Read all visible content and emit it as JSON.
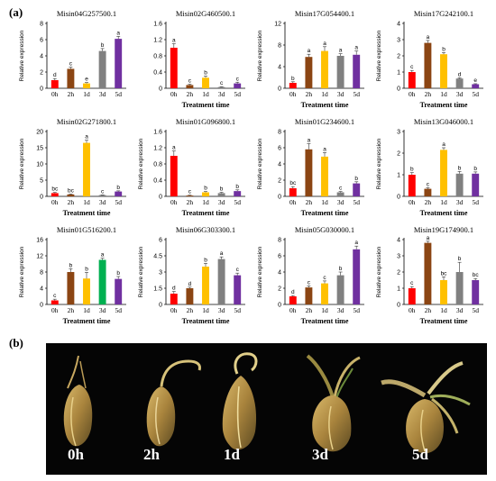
{
  "panel_labels": {
    "a": "(a)",
    "b": "(b)"
  },
  "photo_labels": [
    "0h",
    "2h",
    "1d",
    "3d",
    "5d"
  ],
  "colors": [
    "#ff0000",
    "#8b4513",
    "#ffc000",
    "#808080",
    "#7030a0"
  ],
  "highlight_color": "#00b050",
  "chart_data": [
    {
      "type": "bar",
      "title": "Misin04G257500.1",
      "xlabel": "",
      "ylabel": "Relative expression",
      "ylim": [
        0,
        8
      ],
      "yticks": [
        0,
        2,
        4,
        6,
        8
      ],
      "categories": [
        "0h",
        "2h",
        "1d",
        "3d",
        "5d"
      ],
      "values": [
        1.0,
        2.4,
        0.6,
        4.6,
        6.1
      ],
      "errors": [
        0.2,
        0.2,
        0.1,
        0.3,
        0.3
      ],
      "letters": [
        "d",
        "c",
        "e",
        "b",
        "a"
      ]
    },
    {
      "type": "bar",
      "title": "Misin02G460500.1",
      "xlabel": "Treatment time",
      "ylabel": "",
      "ylim": [
        0,
        1.6
      ],
      "yticks": [
        0,
        0.4,
        0.8,
        1.2,
        1.6
      ],
      "categories": [
        "0h",
        "2h",
        "1d",
        "3d",
        "5d"
      ],
      "values": [
        1.0,
        0.08,
        0.26,
        0.03,
        0.12
      ],
      "errors": [
        0.1,
        0.02,
        0.04,
        0.01,
        0.03
      ],
      "letters": [
        "a",
        "c",
        "b",
        "c",
        "c"
      ]
    },
    {
      "type": "bar",
      "title": "Misin17G054400.1",
      "xlabel": "Treatment time",
      "ylabel": "Relative expression",
      "ylim": [
        0,
        12
      ],
      "yticks": [
        0,
        4,
        8,
        12
      ],
      "categories": [
        "0h",
        "2h",
        "1d",
        "3d",
        "5d"
      ],
      "values": [
        1.0,
        5.8,
        6.9,
        6.0,
        6.2
      ],
      "errors": [
        0.2,
        0.5,
        0.8,
        0.4,
        0.7
      ],
      "letters": [
        "b",
        "a",
        "a",
        "a",
        "a"
      ]
    },
    {
      "type": "bar",
      "title": "Misin17G242100.1",
      "xlabel": "Treatment time",
      "ylabel": "Relative expression",
      "ylim": [
        0,
        4
      ],
      "yticks": [
        0,
        1,
        2,
        3,
        4
      ],
      "categories": [
        "0h",
        "2h",
        "1d",
        "3d",
        "5d"
      ],
      "values": [
        1.0,
        2.8,
        2.1,
        0.6,
        0.25
      ],
      "errors": [
        0.1,
        0.15,
        0.1,
        0.05,
        0.03
      ],
      "letters": [
        "c",
        "a",
        "b",
        "d",
        "e"
      ]
    },
    {
      "type": "bar",
      "title": "Misin02G271800.1",
      "xlabel": "Treatment time",
      "ylabel": "Relative expression",
      "ylim": [
        0,
        20
      ],
      "yticks": [
        0,
        5,
        10,
        15,
        20
      ],
      "categories": [
        "0h",
        "2h",
        "1d",
        "3d",
        "5d"
      ],
      "values": [
        1.0,
        0.6,
        16.5,
        0.4,
        1.5
      ],
      "errors": [
        0.2,
        0.1,
        0.8,
        0.05,
        0.2
      ],
      "letters": [
        "bc",
        "bc",
        "a",
        "c",
        "b"
      ]
    },
    {
      "type": "bar",
      "title": "Misin01G096800.1",
      "xlabel": "Treatment time",
      "ylabel": "Relative expression",
      "ylim": [
        0,
        1.6
      ],
      "yticks": [
        0,
        0.4,
        0.8,
        1.2,
        1.6
      ],
      "categories": [
        "0h",
        "2h",
        "1d",
        "3d",
        "5d"
      ],
      "values": [
        1.0,
        0.02,
        0.1,
        0.08,
        0.13
      ],
      "errors": [
        0.12,
        0.01,
        0.02,
        0.02,
        0.03
      ],
      "letters": [
        "a",
        "c",
        "b",
        "b",
        "b"
      ]
    },
    {
      "type": "bar",
      "title": "Misin01G234600.1",
      "xlabel": "Treatment time",
      "ylabel": "Relative expression",
      "ylim": [
        0,
        8
      ],
      "yticks": [
        0,
        2,
        4,
        6,
        8
      ],
      "categories": [
        "0h",
        "2h",
        "1d",
        "3d",
        "5d"
      ],
      "values": [
        1.0,
        5.8,
        4.9,
        0.5,
        1.6
      ],
      "errors": [
        0.2,
        0.7,
        0.5,
        0.1,
        0.2
      ],
      "letters": [
        "bc",
        "a",
        "a",
        "c",
        "b"
      ]
    },
    {
      "type": "bar",
      "title": "Misin13G046000.1",
      "xlabel": "Treatment time",
      "ylabel": "Relative expression",
      "ylim": [
        0,
        3
      ],
      "yticks": [
        0,
        1,
        2,
        3
      ],
      "categories": [
        "0h",
        "2h",
        "1d",
        "3d",
        "5d"
      ],
      "values": [
        1.0,
        0.35,
        2.15,
        1.05,
        1.05
      ],
      "errors": [
        0.1,
        0.05,
        0.1,
        0.1,
        0.08
      ],
      "letters": [
        "b",
        "c",
        "a",
        "b",
        "b"
      ]
    },
    {
      "type": "bar",
      "title": "Misin01G516200.1",
      "xlabel": "Treatment time",
      "ylabel": "Relative expression",
      "ylim": [
        0,
        16
      ],
      "yticks": [
        0,
        4,
        8,
        12,
        16
      ],
      "categories": [
        "0h",
        "2h",
        "1d",
        "3d",
        "5d"
      ],
      "values": [
        1.0,
        8.0,
        6.4,
        11.0,
        6.3
      ],
      "errors": [
        0.3,
        0.8,
        1.5,
        0.4,
        0.6
      ],
      "letters": [
        "c",
        "b",
        "b",
        "a",
        "b"
      ],
      "highlight_index": 3
    },
    {
      "type": "bar",
      "title": "Misin06G303300.1",
      "xlabel": "Treatment time",
      "ylabel": "Relative expression",
      "ylim": [
        0,
        6
      ],
      "yticks": [
        0,
        1.5,
        3,
        4.5,
        6
      ],
      "categories": [
        "0h",
        "2h",
        "1d",
        "3d",
        "5d"
      ],
      "values": [
        1.0,
        1.5,
        3.5,
        4.2,
        2.7
      ],
      "errors": [
        0.2,
        0.1,
        0.3,
        0.2,
        0.2
      ],
      "letters": [
        "d",
        "d",
        "b",
        "a",
        "c"
      ]
    },
    {
      "type": "bar",
      "title": "Misin05G030000.1",
      "xlabel": "Treatment time",
      "ylabel": "Relative expression",
      "ylim": [
        0,
        8
      ],
      "yticks": [
        0,
        2,
        4,
        6,
        8
      ],
      "categories": [
        "0h",
        "2h",
        "1d",
        "3d",
        "5d"
      ],
      "values": [
        1.0,
        2.1,
        2.6,
        3.6,
        6.8
      ],
      "errors": [
        0.1,
        0.2,
        0.3,
        0.4,
        0.4
      ],
      "letters": [
        "d",
        "c",
        "c",
        "b",
        "a"
      ]
    },
    {
      "type": "bar",
      "title": "Misin19G174900.1",
      "xlabel": "Treatment time",
      "ylabel": "Relative expression",
      "ylim": [
        0,
        4
      ],
      "yticks": [
        0,
        1,
        2,
        3,
        4
      ],
      "categories": [
        "0h",
        "2h",
        "1d",
        "3d",
        "5d"
      ],
      "values": [
        1.0,
        3.8,
        1.5,
        2.0,
        1.5
      ],
      "errors": [
        0.1,
        0.1,
        0.2,
        0.6,
        0.1
      ],
      "letters": [
        "c",
        "a",
        "bc",
        "b",
        "bc"
      ]
    }
  ]
}
